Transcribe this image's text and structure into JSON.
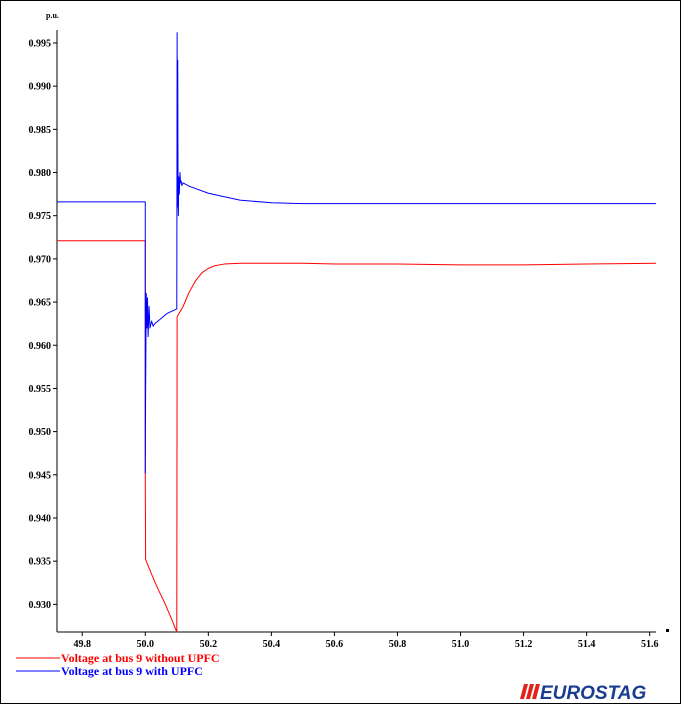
{
  "chart_data": {
    "type": "line",
    "title": "",
    "xlabel": "",
    "ylabel": "p.u.",
    "xlim": [
      49.72,
      51.62
    ],
    "ylim": [
      0.9268,
      0.9965
    ],
    "xticks": [
      49.8,
      50.0,
      50.2,
      50.4,
      50.6,
      50.8,
      51.0,
      51.2,
      51.4,
      51.6
    ],
    "xtick_labels": [
      "49.8",
      "50.0",
      "50.2",
      "50.4",
      "50.6",
      "50.8",
      "51.0",
      "51.2",
      "51.4",
      "51.6"
    ],
    "yticks": [
      0.93,
      0.935,
      0.94,
      0.945,
      0.95,
      0.955,
      0.96,
      0.965,
      0.97,
      0.975,
      0.98,
      0.985,
      0.99,
      0.995
    ],
    "ytick_labels": [
      "0.930",
      "0.935",
      "0.940",
      "0.945",
      "0.950",
      "0.955",
      "0.960",
      "0.965",
      "0.970",
      "0.975",
      "0.980",
      "0.985",
      "0.990",
      "0.995"
    ],
    "grid": false,
    "legend_position": "bottom-left",
    "series": [
      {
        "name": "Voltage at bus 9 without UPFC",
        "color": "#ff0000",
        "x": [
          49.72,
          50.0,
          50.0,
          50.001,
          50.001,
          50.02,
          50.04,
          50.06,
          50.08,
          50.1,
          50.1,
          50.101,
          50.12,
          50.14,
          50.16,
          50.18,
          50.2,
          50.22,
          50.25,
          50.3,
          50.35,
          50.4,
          50.5,
          50.6,
          50.8,
          51.0,
          51.2,
          51.4,
          51.62
        ],
        "y": [
          0.9721,
          0.9721,
          0.9445,
          0.9355,
          0.9352,
          0.9335,
          0.9318,
          0.9303,
          0.9286,
          0.9268,
          0.9268,
          0.9633,
          0.9645,
          0.9662,
          0.9675,
          0.9684,
          0.9689,
          0.9692,
          0.9694,
          0.9695,
          0.9695,
          0.9695,
          0.9695,
          0.9694,
          0.9694,
          0.9693,
          0.9693,
          0.9694,
          0.9695
        ]
      },
      {
        "name": "Voltage at bus 9 with UPFC",
        "color": "#0000ff",
        "x": [
          49.72,
          50.0,
          50.0,
          50.001,
          50.003,
          50.005,
          50.007,
          50.009,
          50.012,
          50.015,
          50.02,
          50.025,
          50.03,
          50.05,
          50.07,
          50.1,
          50.1,
          50.101,
          50.102,
          50.103,
          50.104,
          50.105,
          50.106,
          50.108,
          50.11,
          50.112,
          50.114,
          50.116,
          50.12,
          50.14,
          50.2,
          50.3,
          50.4,
          50.5,
          50.6,
          50.8,
          51.0,
          51.2,
          51.4,
          51.62
        ],
        "y": [
          0.9766,
          0.9766,
          0.9452,
          0.954,
          0.966,
          0.962,
          0.9655,
          0.961,
          0.9645,
          0.962,
          0.9628,
          0.9622,
          0.9625,
          0.9631,
          0.9637,
          0.9642,
          0.9642,
          0.9962,
          0.976,
          0.993,
          0.977,
          0.975,
          0.9795,
          0.9775,
          0.98,
          0.9788,
          0.979,
          0.9785,
          0.9788,
          0.9784,
          0.9776,
          0.9768,
          0.9765,
          0.9764,
          0.9764,
          0.9764,
          0.9764,
          0.9764,
          0.9764,
          0.9764
        ]
      }
    ]
  },
  "brand": {
    "text": "EUROSTAG",
    "color": "#1a3d8f"
  }
}
